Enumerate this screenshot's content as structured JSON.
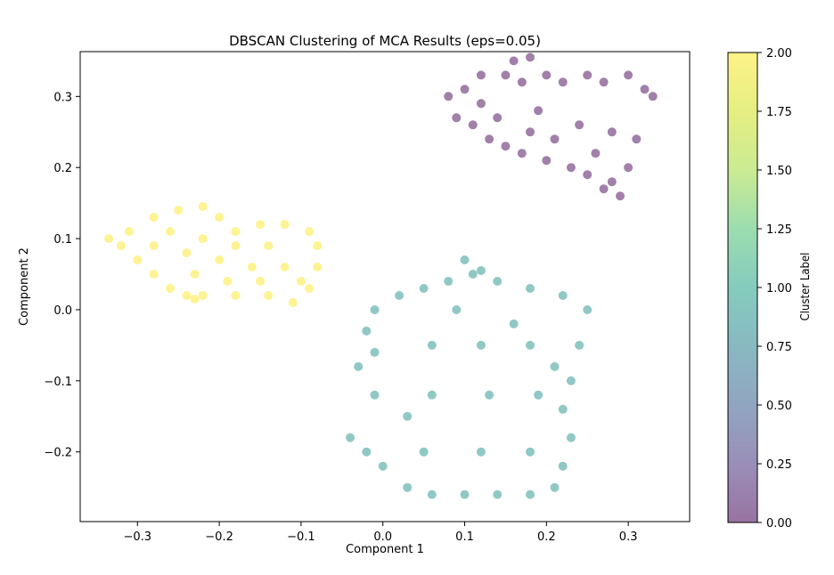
{
  "chart_data": {
    "type": "scatter",
    "title": "DBSCAN Clustering of MCA Results (eps=0.05)",
    "xlabel": "Component 1",
    "ylabel": "Component 2",
    "xlim": [
      -0.37,
      0.375
    ],
    "ylim": [
      -0.298,
      0.363
    ],
    "xticks": [
      -0.3,
      -0.2,
      -0.1,
      0.0,
      0.1,
      0.2,
      0.3
    ],
    "xtick_labels": [
      "−0.3",
      "−0.2",
      "−0.1",
      "0.0",
      "0.1",
      "0.2",
      "0.3"
    ],
    "yticks": [
      -0.2,
      -0.1,
      0.0,
      0.1,
      0.2,
      0.3
    ],
    "ytick_labels": [
      "−0.2",
      "−0.1",
      "0.0",
      "0.1",
      "0.2",
      "0.3"
    ],
    "grid": false,
    "alpha": 0.5,
    "colormap": "viridis",
    "clusters": [
      {
        "label": 0,
        "color": "#440154",
        "points": [
          [
            0.08,
            0.3
          ],
          [
            0.1,
            0.31
          ],
          [
            0.12,
            0.33
          ],
          [
            0.15,
            0.33
          ],
          [
            0.17,
            0.32
          ],
          [
            0.2,
            0.33
          ],
          [
            0.22,
            0.32
          ],
          [
            0.25,
            0.33
          ],
          [
            0.27,
            0.32
          ],
          [
            0.3,
            0.33
          ],
          [
            0.32,
            0.31
          ],
          [
            0.09,
            0.27
          ],
          [
            0.11,
            0.26
          ],
          [
            0.13,
            0.24
          ],
          [
            0.15,
            0.23
          ],
          [
            0.17,
            0.22
          ],
          [
            0.2,
            0.21
          ],
          [
            0.23,
            0.2
          ],
          [
            0.25,
            0.19
          ],
          [
            0.28,
            0.18
          ],
          [
            0.3,
            0.2
          ],
          [
            0.31,
            0.24
          ],
          [
            0.16,
            0.35
          ],
          [
            0.18,
            0.355
          ],
          [
            0.27,
            0.17
          ],
          [
            0.29,
            0.16
          ],
          [
            0.33,
            0.3
          ],
          [
            0.12,
            0.29
          ],
          [
            0.19,
            0.28
          ],
          [
            0.24,
            0.26
          ],
          [
            0.28,
            0.25
          ],
          [
            0.14,
            0.27
          ],
          [
            0.21,
            0.24
          ],
          [
            0.26,
            0.22
          ],
          [
            0.18,
            0.25
          ]
        ]
      },
      {
        "label": 1,
        "color": "#21918c",
        "points": [
          [
            -0.04,
            -0.18
          ],
          [
            -0.02,
            -0.2
          ],
          [
            0.0,
            -0.22
          ],
          [
            0.03,
            -0.25
          ],
          [
            0.06,
            -0.26
          ],
          [
            0.1,
            -0.26
          ],
          [
            0.14,
            -0.26
          ],
          [
            0.18,
            -0.26
          ],
          [
            0.21,
            -0.25
          ],
          [
            0.22,
            -0.22
          ],
          [
            0.23,
            -0.18
          ],
          [
            0.22,
            -0.14
          ],
          [
            0.23,
            -0.1
          ],
          [
            0.24,
            -0.05
          ],
          [
            0.25,
            0.0
          ],
          [
            0.22,
            0.02
          ],
          [
            0.18,
            0.03
          ],
          [
            0.14,
            0.04
          ],
          [
            0.11,
            0.05
          ],
          [
            0.08,
            0.04
          ],
          [
            0.05,
            0.03
          ],
          [
            0.02,
            0.02
          ],
          [
            -0.01,
            0.0
          ],
          [
            -0.02,
            -0.03
          ],
          [
            -0.01,
            -0.06
          ],
          [
            -0.03,
            -0.08
          ],
          [
            -0.01,
            -0.12
          ],
          [
            0.03,
            -0.15
          ],
          [
            0.1,
            0.07
          ],
          [
            0.12,
            0.055
          ],
          [
            0.06,
            -0.05
          ],
          [
            0.12,
            -0.05
          ],
          [
            0.18,
            -0.05
          ],
          [
            0.06,
            -0.12
          ],
          [
            0.13,
            -0.12
          ],
          [
            0.19,
            -0.12
          ],
          [
            0.05,
            -0.2
          ],
          [
            0.12,
            -0.2
          ],
          [
            0.18,
            -0.2
          ],
          [
            0.09,
            0.0
          ],
          [
            0.16,
            -0.02
          ],
          [
            0.21,
            -0.08
          ]
        ]
      },
      {
        "label": 2,
        "color": "#fde725",
        "points": [
          [
            -0.335,
            0.1
          ],
          [
            -0.32,
            0.09
          ],
          [
            -0.3,
            0.07
          ],
          [
            -0.28,
            0.05
          ],
          [
            -0.26,
            0.03
          ],
          [
            -0.24,
            0.02
          ],
          [
            -0.22,
            0.02
          ],
          [
            -0.18,
            0.02
          ],
          [
            -0.14,
            0.02
          ],
          [
            -0.11,
            0.01
          ],
          [
            -0.09,
            0.03
          ],
          [
            -0.08,
            0.06
          ],
          [
            -0.08,
            0.09
          ],
          [
            -0.09,
            0.11
          ],
          [
            -0.12,
            0.12
          ],
          [
            -0.15,
            0.12
          ],
          [
            -0.18,
            0.11
          ],
          [
            -0.2,
            0.13
          ],
          [
            -0.22,
            0.145
          ],
          [
            -0.25,
            0.14
          ],
          [
            -0.28,
            0.13
          ],
          [
            -0.31,
            0.11
          ],
          [
            -0.28,
            0.09
          ],
          [
            -0.24,
            0.08
          ],
          [
            -0.2,
            0.07
          ],
          [
            -0.16,
            0.06
          ],
          [
            -0.12,
            0.06
          ],
          [
            -0.26,
            0.11
          ],
          [
            -0.22,
            0.1
          ],
          [
            -0.18,
            0.09
          ],
          [
            -0.14,
            0.09
          ],
          [
            -0.23,
            0.05
          ],
          [
            -0.19,
            0.04
          ],
          [
            -0.15,
            0.04
          ],
          [
            -0.1,
            0.04
          ],
          [
            -0.23,
            0.015
          ]
        ]
      }
    ],
    "colorbar": {
      "label": "Cluster Label",
      "min": 0.0,
      "max": 2.0,
      "ticks": [
        0.0,
        0.25,
        0.5,
        0.75,
        1.0,
        1.25,
        1.5,
        1.75,
        2.0
      ],
      "tick_labels": [
        "0.00",
        "0.25",
        "0.50",
        "0.75",
        "1.00",
        "1.25",
        "1.50",
        "1.75",
        "2.00"
      ]
    }
  }
}
